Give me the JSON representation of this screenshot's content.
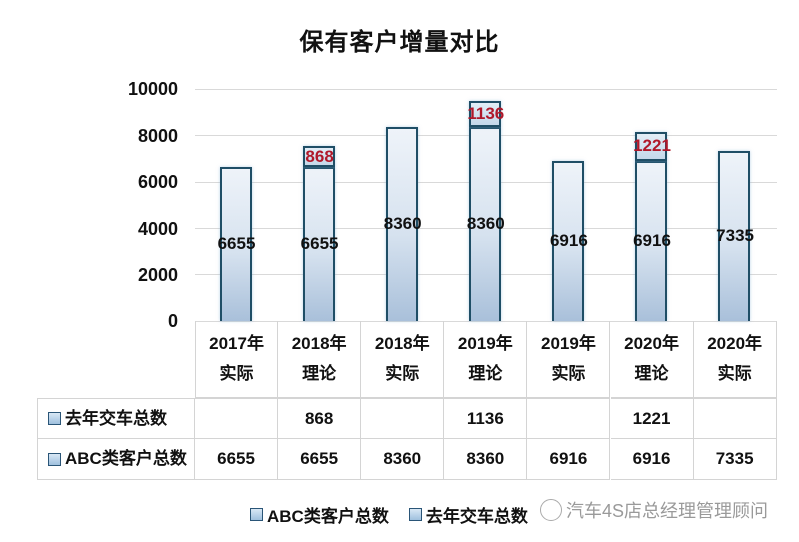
{
  "chart_data": {
    "type": "bar",
    "stacked": true,
    "title": "保有客户增量对比",
    "xlabel": "",
    "ylabel": "",
    "ylim": [
      0,
      10000
    ],
    "yticks": [
      "0",
      "2000",
      "4000",
      "6000",
      "8000",
      "10000"
    ],
    "grid": true,
    "legend_position": "bottom",
    "categories": [
      "2017年实际",
      "2018年理论",
      "2018年实际",
      "2019年理论",
      "2019年实际",
      "2020年理论",
      "2020年实际"
    ],
    "category_lines": [
      [
        "2017年",
        "实际"
      ],
      [
        "2018年",
        "理论"
      ],
      [
        "2018年",
        "实际"
      ],
      [
        "2019年",
        "理论"
      ],
      [
        "2019年",
        "实际"
      ],
      [
        "2020年",
        "理论"
      ],
      [
        "2020年",
        "实际"
      ]
    ],
    "series": [
      {
        "name": "ABC类客户总数",
        "values": [
          6655,
          6655,
          8360,
          8360,
          6916,
          6916,
          7335
        ],
        "label_color": "#111111"
      },
      {
        "name": "去年交车总数",
        "values": [
          null,
          868,
          null,
          1136,
          null,
          1221,
          null
        ],
        "label_color": "#b0182a"
      }
    ],
    "data_table": true
  },
  "title": "保有客户增量对比",
  "yticks": [
    "10000",
    "8000",
    "6000",
    "4000",
    "2000",
    "0"
  ],
  "table": {
    "headers": [
      {
        "l1": "2017年",
        "l2": "实际"
      },
      {
        "l1": "2018年",
        "l2": "理论"
      },
      {
        "l1": "2018年",
        "l2": "实际"
      },
      {
        "l1": "2019年",
        "l2": "理论"
      },
      {
        "l1": "2019年",
        "l2": "实际"
      },
      {
        "l1": "2020年",
        "l2": "理论"
      },
      {
        "l1": "2020年",
        "l2": "实际"
      }
    ],
    "rows": [
      {
        "label": "去年交车总数",
        "values": [
          "",
          "868",
          "",
          "1136",
          "",
          "1221",
          ""
        ]
      },
      {
        "label": "ABC类客户总数",
        "values": [
          "6655",
          "6655",
          "8360",
          "8360",
          "6916",
          "6916",
          "7335"
        ]
      }
    ]
  },
  "bar_labels": {
    "base": [
      "6655",
      "6655",
      "8360",
      "8360",
      "6916",
      "6916",
      "7335"
    ],
    "top": [
      "",
      "868",
      "",
      "1136",
      "",
      "1221",
      ""
    ]
  },
  "legend": [
    "ABC类客户总数",
    "去年交车总数"
  ],
  "watermark": "汽车4S店总经理管理顾问",
  "colors": {
    "bar_border": "#1f4e66",
    "bar_fill_top": "#eef3f9",
    "bar_fill_bottom": "#a9c0da",
    "top_label": "#b0182a",
    "grid": "#d9d9d9"
  }
}
